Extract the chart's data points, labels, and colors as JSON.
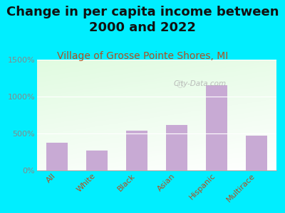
{
  "title": "Change in per capita income between\n2000 and 2022",
  "subtitle": "Village of Grosse Pointe Shores, MI",
  "categories": [
    "All",
    "White",
    "Black",
    "Asian",
    "Hispanic",
    "Multirace"
  ],
  "values": [
    375,
    270,
    540,
    620,
    1150,
    470
  ],
  "bar_color": "#c8aad4",
  "background_outer": "#00eeff",
  "background_inner_top": "#c8e6c0",
  "background_inner_bottom": "#f0f8ee",
  "title_fontsize": 13,
  "subtitle_fontsize": 10,
  "subtitle_color": "#b05020",
  "tick_label_color": "#b05020",
  "ytick_color": "#888888",
  "ylim": [
    0,
    1500
  ],
  "yticks": [
    0,
    500,
    1000,
    1500
  ],
  "watermark": "City-Data.com"
}
